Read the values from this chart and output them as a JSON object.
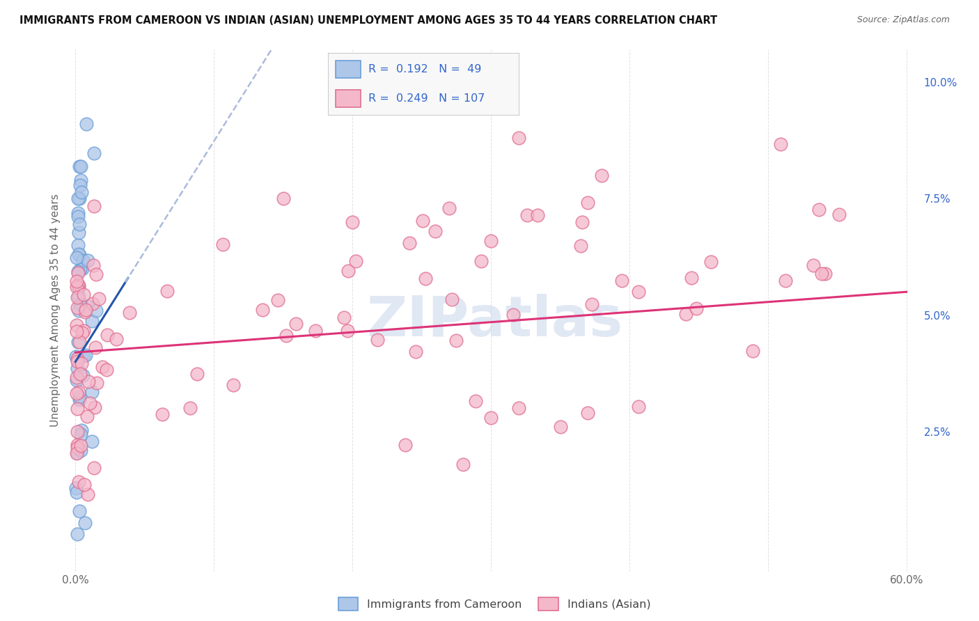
{
  "title": "IMMIGRANTS FROM CAMEROON VS INDIAN (ASIAN) UNEMPLOYMENT AMONG AGES 35 TO 44 YEARS CORRELATION CHART",
  "source": "Source: ZipAtlas.com",
  "ylabel": "Unemployment Among Ages 35 to 44 years",
  "xlim": [
    -0.005,
    0.61
  ],
  "ylim": [
    -0.005,
    0.107
  ],
  "yticks_right": [
    0.025,
    0.05,
    0.075,
    0.1
  ],
  "yticklabels_right": [
    "2.5%",
    "5.0%",
    "7.5%",
    "10.0%"
  ],
  "bg_color": "#ffffff",
  "grid_color": "#dddddd",
  "cameroon_color": "#aec6e8",
  "cameroon_edge": "#6a9fd8",
  "indian_color": "#f4b8cb",
  "indian_edge": "#e07090",
  "blue_line_color": "#2255aa",
  "pink_line_color": "#dd3377",
  "dashed_line_color": "#aabbdd",
  "legend_r_cameroon": "0.192",
  "legend_n_cameroon": "49",
  "legend_r_indian": "0.249",
  "legend_n_indian": "107",
  "legend_value_color": "#3366cc",
  "watermark": "ZIPatlas",
  "watermark_color": "#ccd9ee"
}
